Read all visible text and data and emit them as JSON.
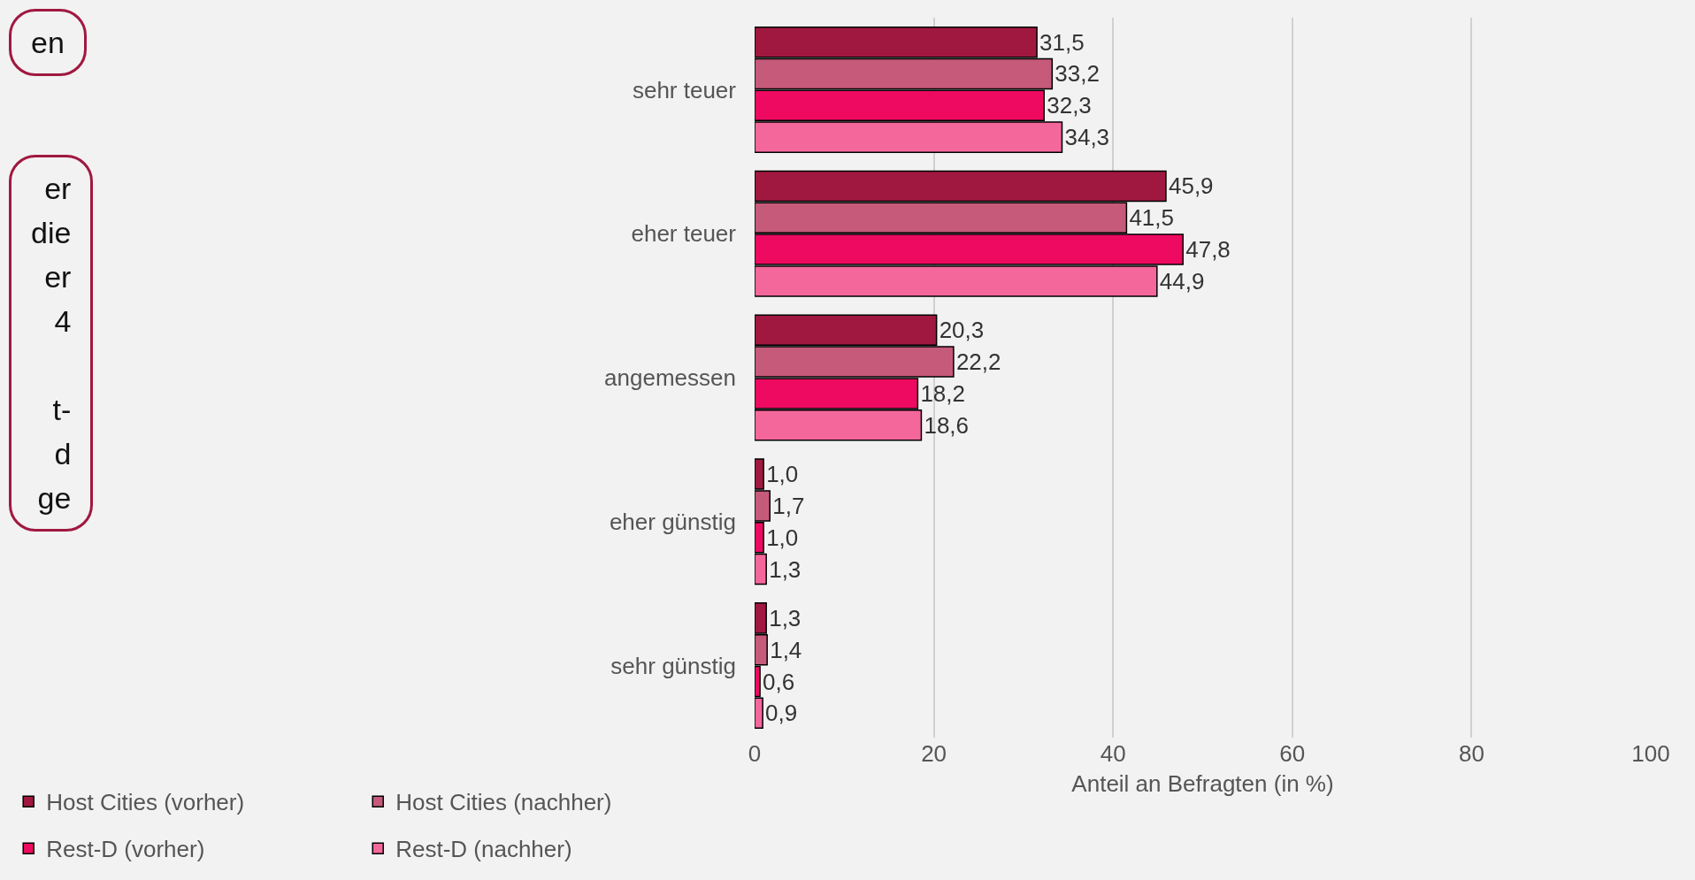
{
  "chart_data": {
    "type": "bar",
    "orientation": "horizontal",
    "xlabel": "Anteil an Befragten (in %)",
    "categories": [
      "sehr teuer",
      "eher teuer",
      "angemessen",
      "eher günstig",
      "sehr günstig"
    ],
    "series": [
      {
        "name": "Host Cities (vorher)",
        "color": "#a01840",
        "values": [
          31.5,
          45.9,
          20.3,
          1.0,
          1.3
        ],
        "value_labels": [
          "31,5",
          "45,9",
          "20,3",
          "1,0",
          "1,3"
        ]
      },
      {
        "name": "Host Cities (nachher)",
        "color": "#c65a7a",
        "values": [
          33.2,
          41.5,
          22.2,
          1.7,
          1.4
        ],
        "value_labels": [
          "33,2",
          "41,5",
          "22,2",
          "1,7",
          "1,4"
        ]
      },
      {
        "name": "Rest-D (vorher)",
        "color": "#ee0a60",
        "values": [
          32.3,
          47.8,
          18.2,
          1.0,
          0.6
        ],
        "value_labels": [
          "32,3",
          "47,8",
          "18,2",
          "1,0",
          "0,6"
        ]
      },
      {
        "name": "Rest-D (nachher)",
        "color": "#f4679b",
        "values": [
          34.3,
          44.9,
          18.6,
          1.3,
          0.9
        ],
        "value_labels": [
          "34,3",
          "44,9",
          "18,6",
          "1,3",
          "0,9"
        ]
      }
    ],
    "xlim": [
      0,
      100
    ],
    "xticks": [
      0,
      20,
      40,
      60,
      80,
      100
    ],
    "grid": "x",
    "legend": "bottom left",
    "annotations": [
      "en",
      "er\ndie\ner\n4\n\nt-\nd\nge"
    ]
  }
}
